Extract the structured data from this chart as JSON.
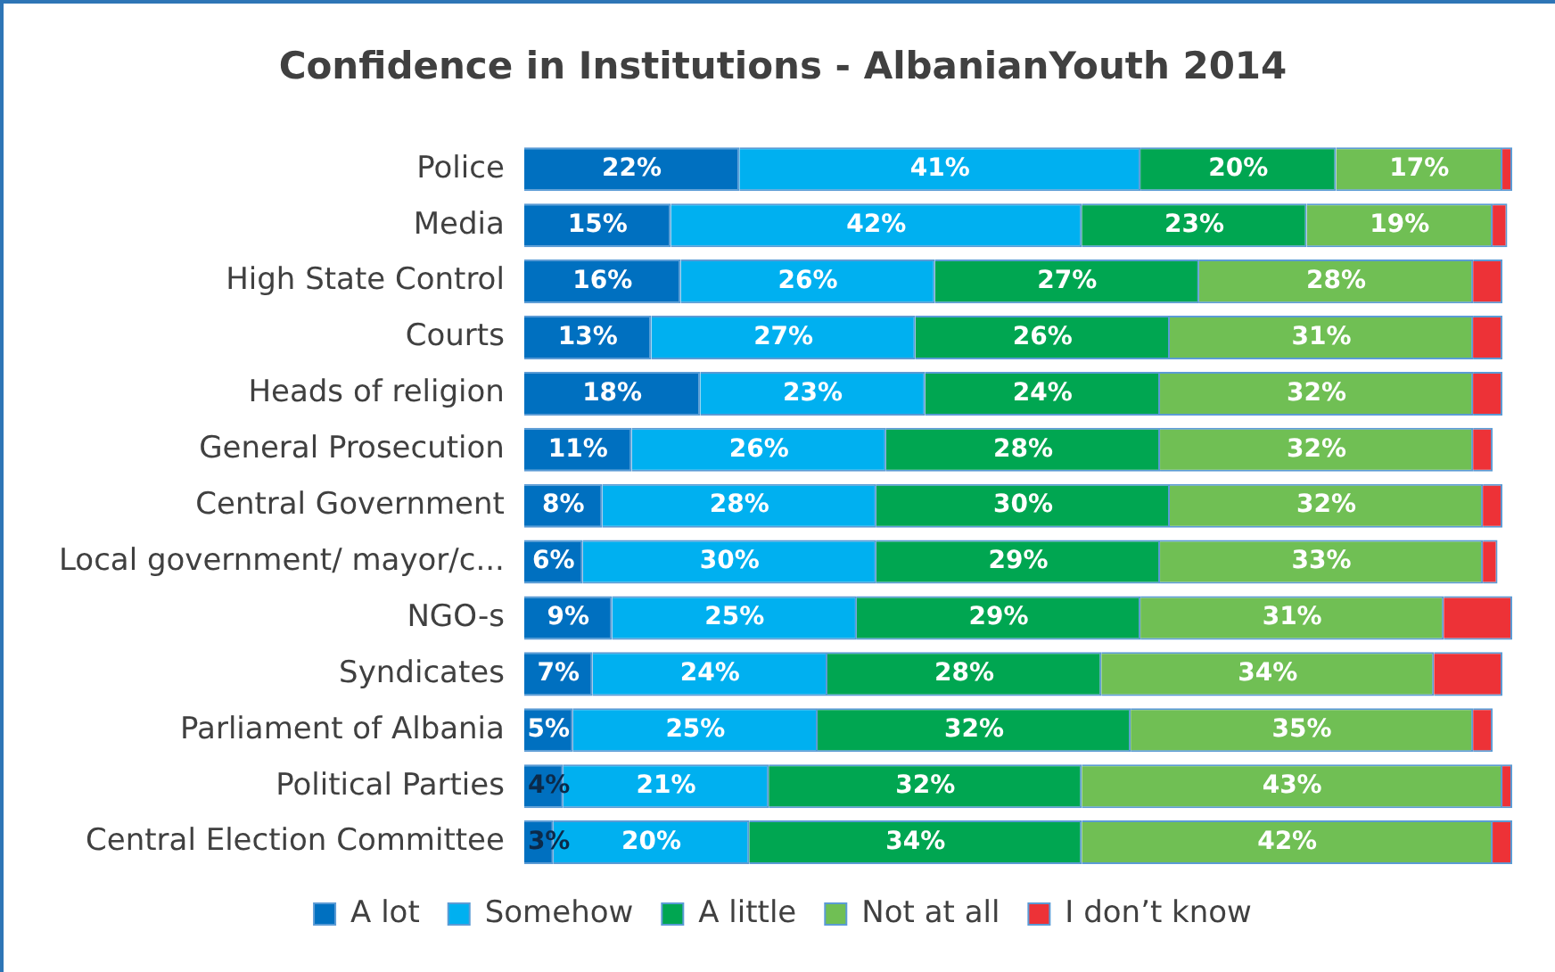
{
  "chart_data": {
    "type": "bar",
    "orientation": "horizontal",
    "stacked": true,
    "title": "Confidence in Institutions - AlbanianYouth 2014",
    "categories": [
      "Police",
      "Media",
      "High State Control",
      "Courts",
      "Heads of religion",
      "General Prosecution",
      "Central Government",
      "Local government/ mayor/c...",
      "NGO-s",
      "Syndicates",
      "Parliament of Albania",
      "Political Parties",
      "Central Election Committee"
    ],
    "series": [
      {
        "name": "A lot",
        "color": "#0070c0",
        "values": [
          22,
          15,
          16,
          13,
          18,
          11,
          8,
          6,
          9,
          7,
          5,
          4,
          3
        ],
        "value_labels": [
          "22%",
          "15%",
          "16%",
          "13%",
          "18%",
          "11%",
          "8%",
          "6%",
          "9%",
          "7%",
          "5%",
          "4%",
          "3%"
        ]
      },
      {
        "name": "Somehow",
        "color": "#00b0f0",
        "values": [
          41,
          42,
          26,
          27,
          23,
          26,
          28,
          30,
          25,
          24,
          25,
          21,
          20
        ],
        "value_labels": [
          "41%",
          "42%",
          "26%",
          "27%",
          "23%",
          "26%",
          "28%",
          "30%",
          "25%",
          "24%",
          "25%",
          "21%",
          "20%"
        ]
      },
      {
        "name": "A little",
        "color": "#00a651",
        "values": [
          20,
          23,
          27,
          26,
          24,
          28,
          30,
          29,
          29,
          28,
          32,
          32,
          34
        ],
        "value_labels": [
          "20%",
          "23%",
          "27%",
          "26%",
          "24%",
          "28%",
          "30%",
          "29%",
          "29%",
          "28%",
          "32%",
          "32%",
          "34%"
        ]
      },
      {
        "name": "Not at all",
        "color": "#70bf54",
        "values": [
          17,
          19,
          28,
          31,
          32,
          32,
          32,
          33,
          31,
          34,
          35,
          43,
          42
        ],
        "value_labels": [
          "17%",
          "19%",
          "28%",
          "31%",
          "32%",
          "32%",
          "32%",
          "33%",
          "31%",
          "34%",
          "35%",
          "43%",
          "42%"
        ]
      },
      {
        "name": "I don’t know",
        "color": "#ed3237",
        "values": [
          1,
          1.5,
          3,
          3,
          3,
          2,
          2,
          1.5,
          7,
          7,
          2,
          1,
          2
        ]
      }
    ],
    "legend": "bottom",
    "tick_labels": "y"
  }
}
